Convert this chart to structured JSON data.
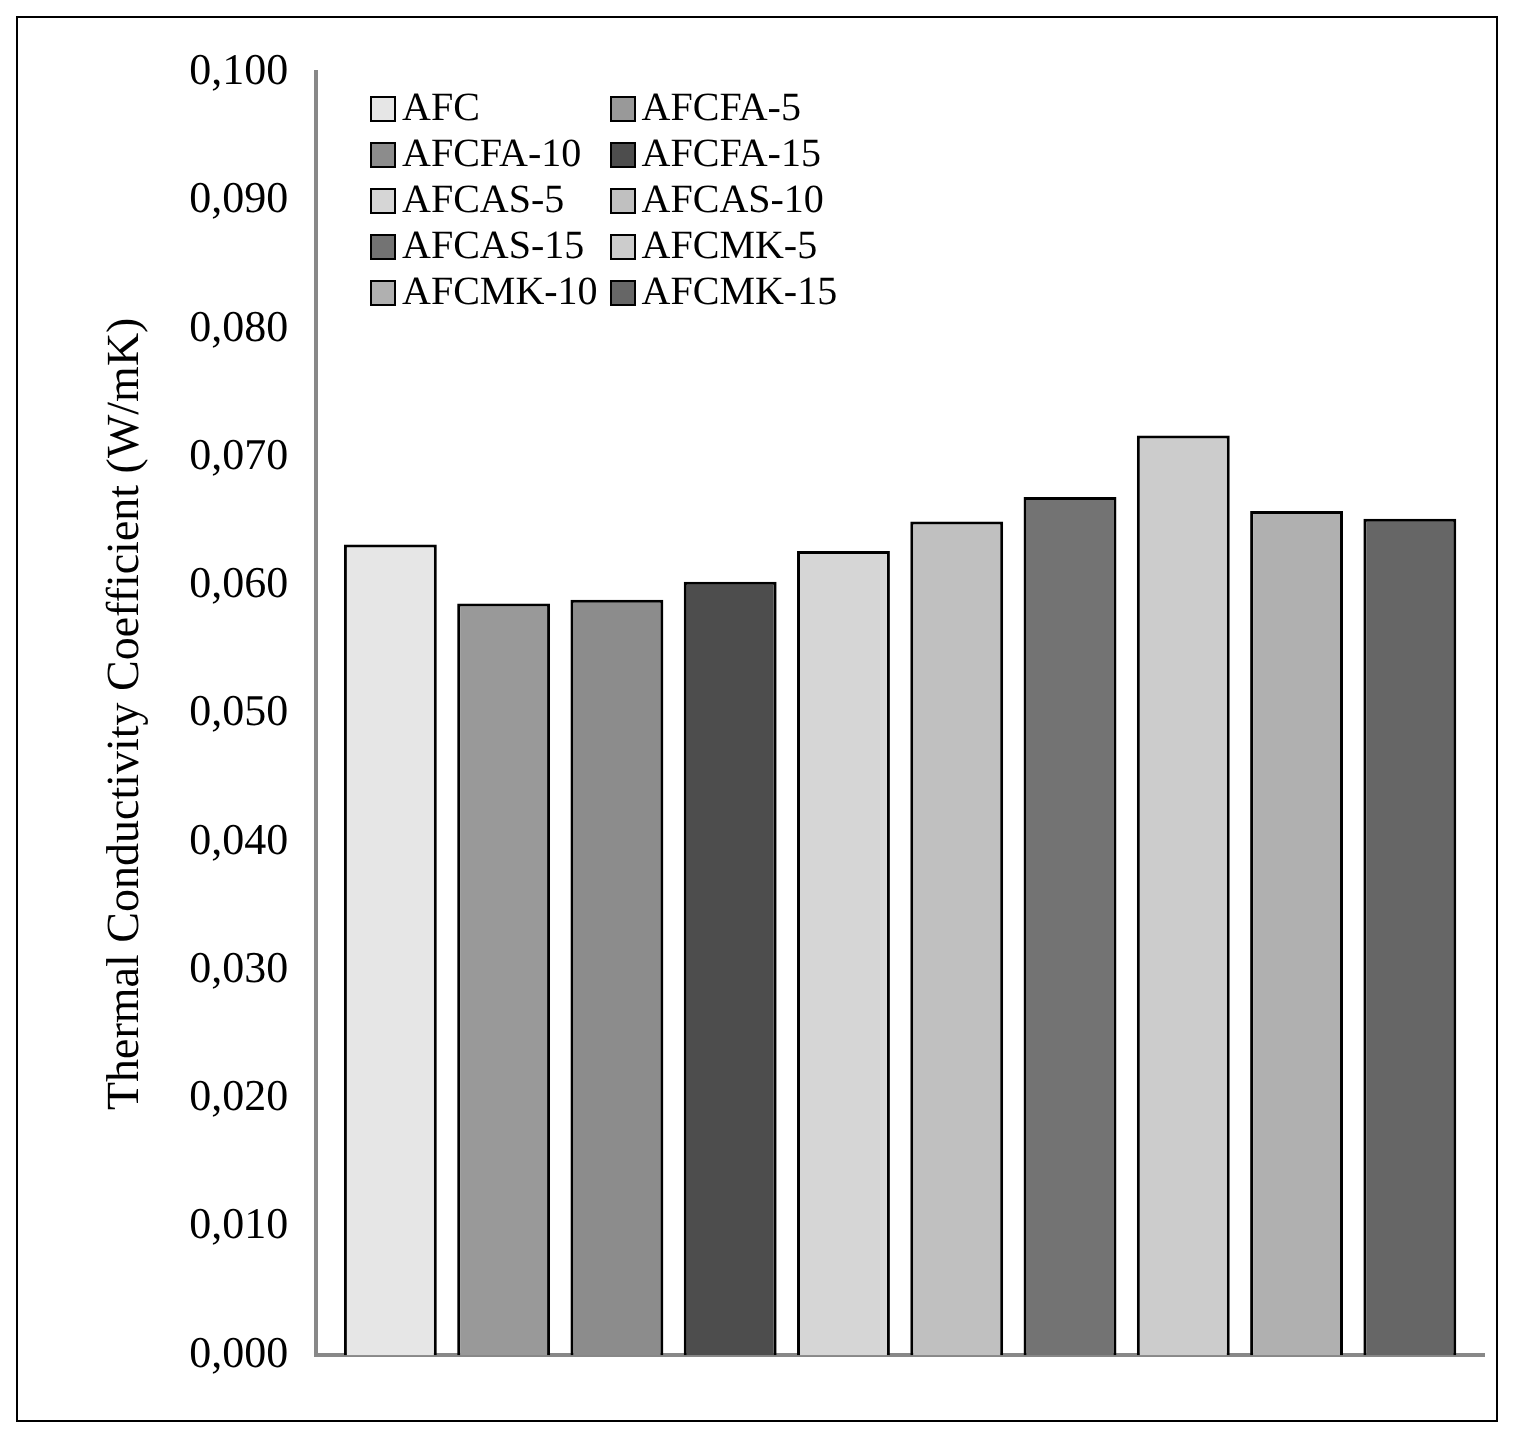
{
  "chart_data": {
    "type": "bar",
    "ylabel": "Thermal Conductivity Coefficient (W/mK)",
    "categories": [
      null
    ],
    "series": [
      {
        "name": "AFC",
        "color": "#e6e6e6",
        "values": [
          0.0632
        ]
      },
      {
        "name": "AFCFA-5",
        "color": "#999999",
        "values": [
          0.0586
        ]
      },
      {
        "name": "AFCFA-10",
        "color": "#8c8c8c",
        "values": [
          0.0589
        ]
      },
      {
        "name": "AFCFA-15",
        "color": "#4d4d4d",
        "values": [
          0.0603
        ]
      },
      {
        "name": "AFCAS-5",
        "color": "#d6d6d6",
        "values": [
          0.0627
        ]
      },
      {
        "name": "AFCAS-10",
        "color": "#c0c0c0",
        "values": [
          0.065
        ]
      },
      {
        "name": "AFCAS-15",
        "color": "#737373",
        "values": [
          0.0669
        ]
      },
      {
        "name": "AFCMK-5",
        "color": "#cccccc",
        "values": [
          0.0717
        ]
      },
      {
        "name": "AFCMK-10",
        "color": "#b0b0b0",
        "values": [
          0.0658
        ]
      },
      {
        "name": "AFCMK-15",
        "color": "#666666",
        "values": [
          0.0652
        ]
      }
    ],
    "ylim": [
      0,
      0.1
    ],
    "yticks": [
      {
        "value": 0,
        "label": "0,000"
      },
      {
        "value": 0.01,
        "label": "0,010"
      },
      {
        "value": 0.02,
        "label": "0,020"
      },
      {
        "value": 0.03,
        "label": "0,030"
      },
      {
        "value": 0.04,
        "label": "0,040"
      },
      {
        "value": 0.05,
        "label": "0,050"
      },
      {
        "value": 0.06,
        "label": "0,060"
      },
      {
        "value": 0.07,
        "label": "0,070"
      },
      {
        "value": 0.08,
        "label": "0,080"
      },
      {
        "value": 0.09,
        "label": "0,090"
      },
      {
        "value": 0.1,
        "label": "0,100"
      }
    ],
    "grid": false,
    "legend": "top left"
  }
}
